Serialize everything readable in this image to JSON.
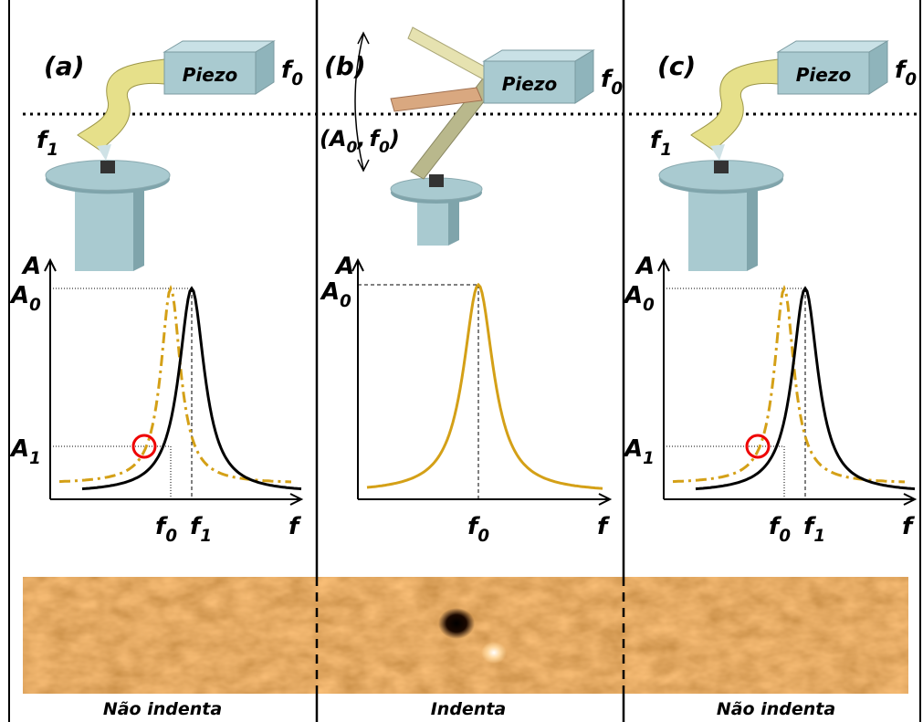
{
  "panels": [
    {
      "label": "(a)",
      "piezo": "Piezo",
      "drive": {
        "base": "f",
        "sub": "0"
      },
      "tip": {
        "base": "f",
        "sub": "1"
      },
      "y_axis": "A",
      "y_top": {
        "base": "A",
        "sub": "0"
      },
      "y_low": {
        "base": "A",
        "sub": "1"
      },
      "x_marks": [
        {
          "base": "f",
          "sub": "0"
        },
        {
          "base": "f",
          "sub": "1"
        }
      ],
      "x_axis": "f",
      "caption": "Não indenta"
    },
    {
      "label": "(b)",
      "piezo": "Piezo",
      "drive": {
        "base": "f",
        "sub": "0"
      },
      "oscillation": {
        "open": "(",
        "amp": {
          "base": "A",
          "sub": "0"
        },
        "sep": ",",
        "freq": {
          "base": "f",
          "sub": "0"
        },
        "close": ")"
      },
      "y_axis": "A",
      "y_top": {
        "base": "A",
        "sub": "0"
      },
      "x_marks": [
        {
          "base": "f",
          "sub": "0"
        }
      ],
      "x_axis": "f",
      "caption": "Indenta"
    },
    {
      "label": "(c)",
      "piezo": "Piezo",
      "drive": {
        "base": "f",
        "sub": "0"
      },
      "tip": {
        "base": "f",
        "sub": "1"
      },
      "y_axis": "A",
      "y_top": {
        "base": "A",
        "sub": "0"
      },
      "y_low": {
        "base": "A",
        "sub": "1"
      },
      "x_marks": [
        {
          "base": "f",
          "sub": "0"
        },
        {
          "base": "f",
          "sub": "1"
        }
      ],
      "x_axis": "f",
      "caption": "Não indenta"
    }
  ]
}
